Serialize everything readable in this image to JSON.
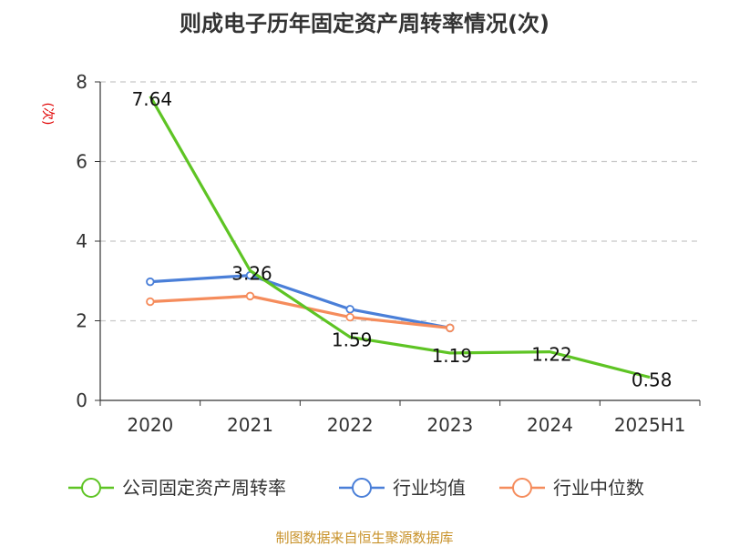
{
  "chart_data": {
    "type": "line",
    "title": "则成电子历年固定资产周转率情况(次)",
    "ylabel": "(次)",
    "xlabel": "",
    "categories": [
      "2020",
      "2021",
      "2022",
      "2023",
      "2024",
      "2025H1"
    ],
    "ylim": [
      0,
      8
    ],
    "yticks": [
      0,
      2,
      4,
      6,
      8
    ],
    "grid": true,
    "legend_position": "bottom",
    "series": [
      {
        "name": "公司固定资产周转率",
        "color": "#5ec424",
        "values": [
          7.64,
          3.26,
          1.59,
          1.19,
          1.22,
          0.58
        ],
        "labels": [
          "7.64",
          "3.26",
          "1.59",
          "1.19",
          "1.22",
          "0.58"
        ]
      },
      {
        "name": "行业均值",
        "color": "#4a7fd8",
        "values": [
          2.98,
          3.14,
          2.29,
          1.82,
          null,
          null
        ]
      },
      {
        "name": "行业中位数",
        "color": "#f58c5c",
        "values": [
          2.48,
          2.62,
          2.09,
          1.82,
          null,
          null
        ]
      }
    ]
  },
  "source": "制图数据来自恒生聚源数据库"
}
